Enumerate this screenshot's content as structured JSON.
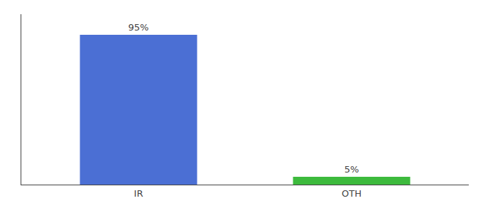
{
  "chart_data": {
    "type": "bar",
    "categories": [
      "IR",
      "OTH"
    ],
    "values": [
      95,
      5
    ],
    "value_labels": [
      "95%",
      "5%"
    ],
    "colors": [
      "#4b6fd4",
      "#3dba3d"
    ],
    "ylim": [
      0,
      108
    ],
    "data_labels": true,
    "tick_labels": "x",
    "grid": false
  }
}
